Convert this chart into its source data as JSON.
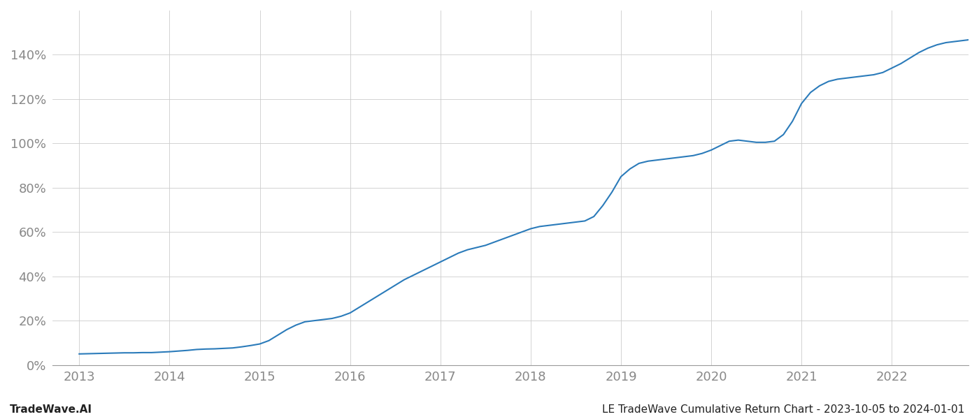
{
  "title": "LE TradeWave Cumulative Return Chart - 2023-10-05 to 2024-01-01",
  "watermark": "TradeWave.AI",
  "line_color": "#2b7bba",
  "line_width": 1.5,
  "background_color": "#ffffff",
  "grid_color": "#cccccc",
  "x_years": [
    2013,
    2014,
    2015,
    2016,
    2017,
    2018,
    2019,
    2020,
    2021,
    2022
  ],
  "x_data": [
    2013.0,
    2013.1,
    2013.2,
    2013.3,
    2013.4,
    2013.5,
    2013.6,
    2013.7,
    2013.8,
    2013.9,
    2014.0,
    2014.1,
    2014.2,
    2014.3,
    2014.4,
    2014.5,
    2014.6,
    2014.7,
    2014.8,
    2014.9,
    2015.0,
    2015.1,
    2015.2,
    2015.3,
    2015.4,
    2015.5,
    2015.6,
    2015.7,
    2015.8,
    2015.9,
    2016.0,
    2016.1,
    2016.2,
    2016.3,
    2016.4,
    2016.5,
    2016.6,
    2016.7,
    2016.8,
    2016.9,
    2017.0,
    2017.1,
    2017.2,
    2017.3,
    2017.4,
    2017.5,
    2017.6,
    2017.7,
    2017.8,
    2017.9,
    2018.0,
    2018.1,
    2018.2,
    2018.3,
    2018.4,
    2018.5,
    2018.6,
    2018.7,
    2018.8,
    2018.9,
    2019.0,
    2019.1,
    2019.2,
    2019.3,
    2019.4,
    2019.5,
    2019.6,
    2019.7,
    2019.8,
    2019.9,
    2020.0,
    2020.1,
    2020.2,
    2020.3,
    2020.4,
    2020.5,
    2020.6,
    2020.7,
    2020.8,
    2020.9,
    2021.0,
    2021.1,
    2021.2,
    2021.3,
    2021.4,
    2021.5,
    2021.6,
    2021.7,
    2021.8,
    2021.9,
    2022.0,
    2022.1,
    2022.2,
    2022.3,
    2022.4,
    2022.5,
    2022.6,
    2022.7,
    2022.8,
    2022.9
  ],
  "y_data": [
    5.0,
    5.1,
    5.2,
    5.3,
    5.4,
    5.5,
    5.5,
    5.6,
    5.6,
    5.8,
    6.0,
    6.3,
    6.6,
    7.0,
    7.2,
    7.3,
    7.5,
    7.7,
    8.2,
    8.8,
    9.5,
    11.0,
    13.5,
    16.0,
    18.0,
    19.5,
    20.0,
    20.5,
    21.0,
    22.0,
    23.5,
    26.0,
    28.5,
    31.0,
    33.5,
    36.0,
    38.5,
    40.5,
    42.5,
    44.5,
    46.5,
    48.5,
    50.5,
    52.0,
    53.0,
    54.0,
    55.5,
    57.0,
    58.5,
    60.0,
    61.5,
    62.5,
    63.0,
    63.5,
    64.0,
    64.5,
    65.0,
    67.0,
    72.0,
    78.0,
    85.0,
    88.5,
    91.0,
    92.0,
    92.5,
    93.0,
    93.5,
    94.0,
    94.5,
    95.5,
    97.0,
    99.0,
    101.0,
    101.5,
    101.0,
    100.5,
    100.5,
    101.0,
    104.0,
    110.0,
    118.0,
    123.0,
    126.0,
    128.0,
    129.0,
    129.5,
    130.0,
    130.5,
    131.0,
    132.0,
    134.0,
    136.0,
    138.5,
    141.0,
    143.0,
    144.5,
    145.5,
    146.0,
    146.5,
    147.0
  ],
  "ylim": [
    0,
    160
  ],
  "xlim": [
    2012.7,
    2022.85
  ],
  "yticks": [
    0,
    20,
    40,
    60,
    80,
    100,
    120,
    140
  ],
  "tick_color": "#888888",
  "tick_fontsize": 13,
  "title_fontsize": 11,
  "watermark_fontsize": 11
}
